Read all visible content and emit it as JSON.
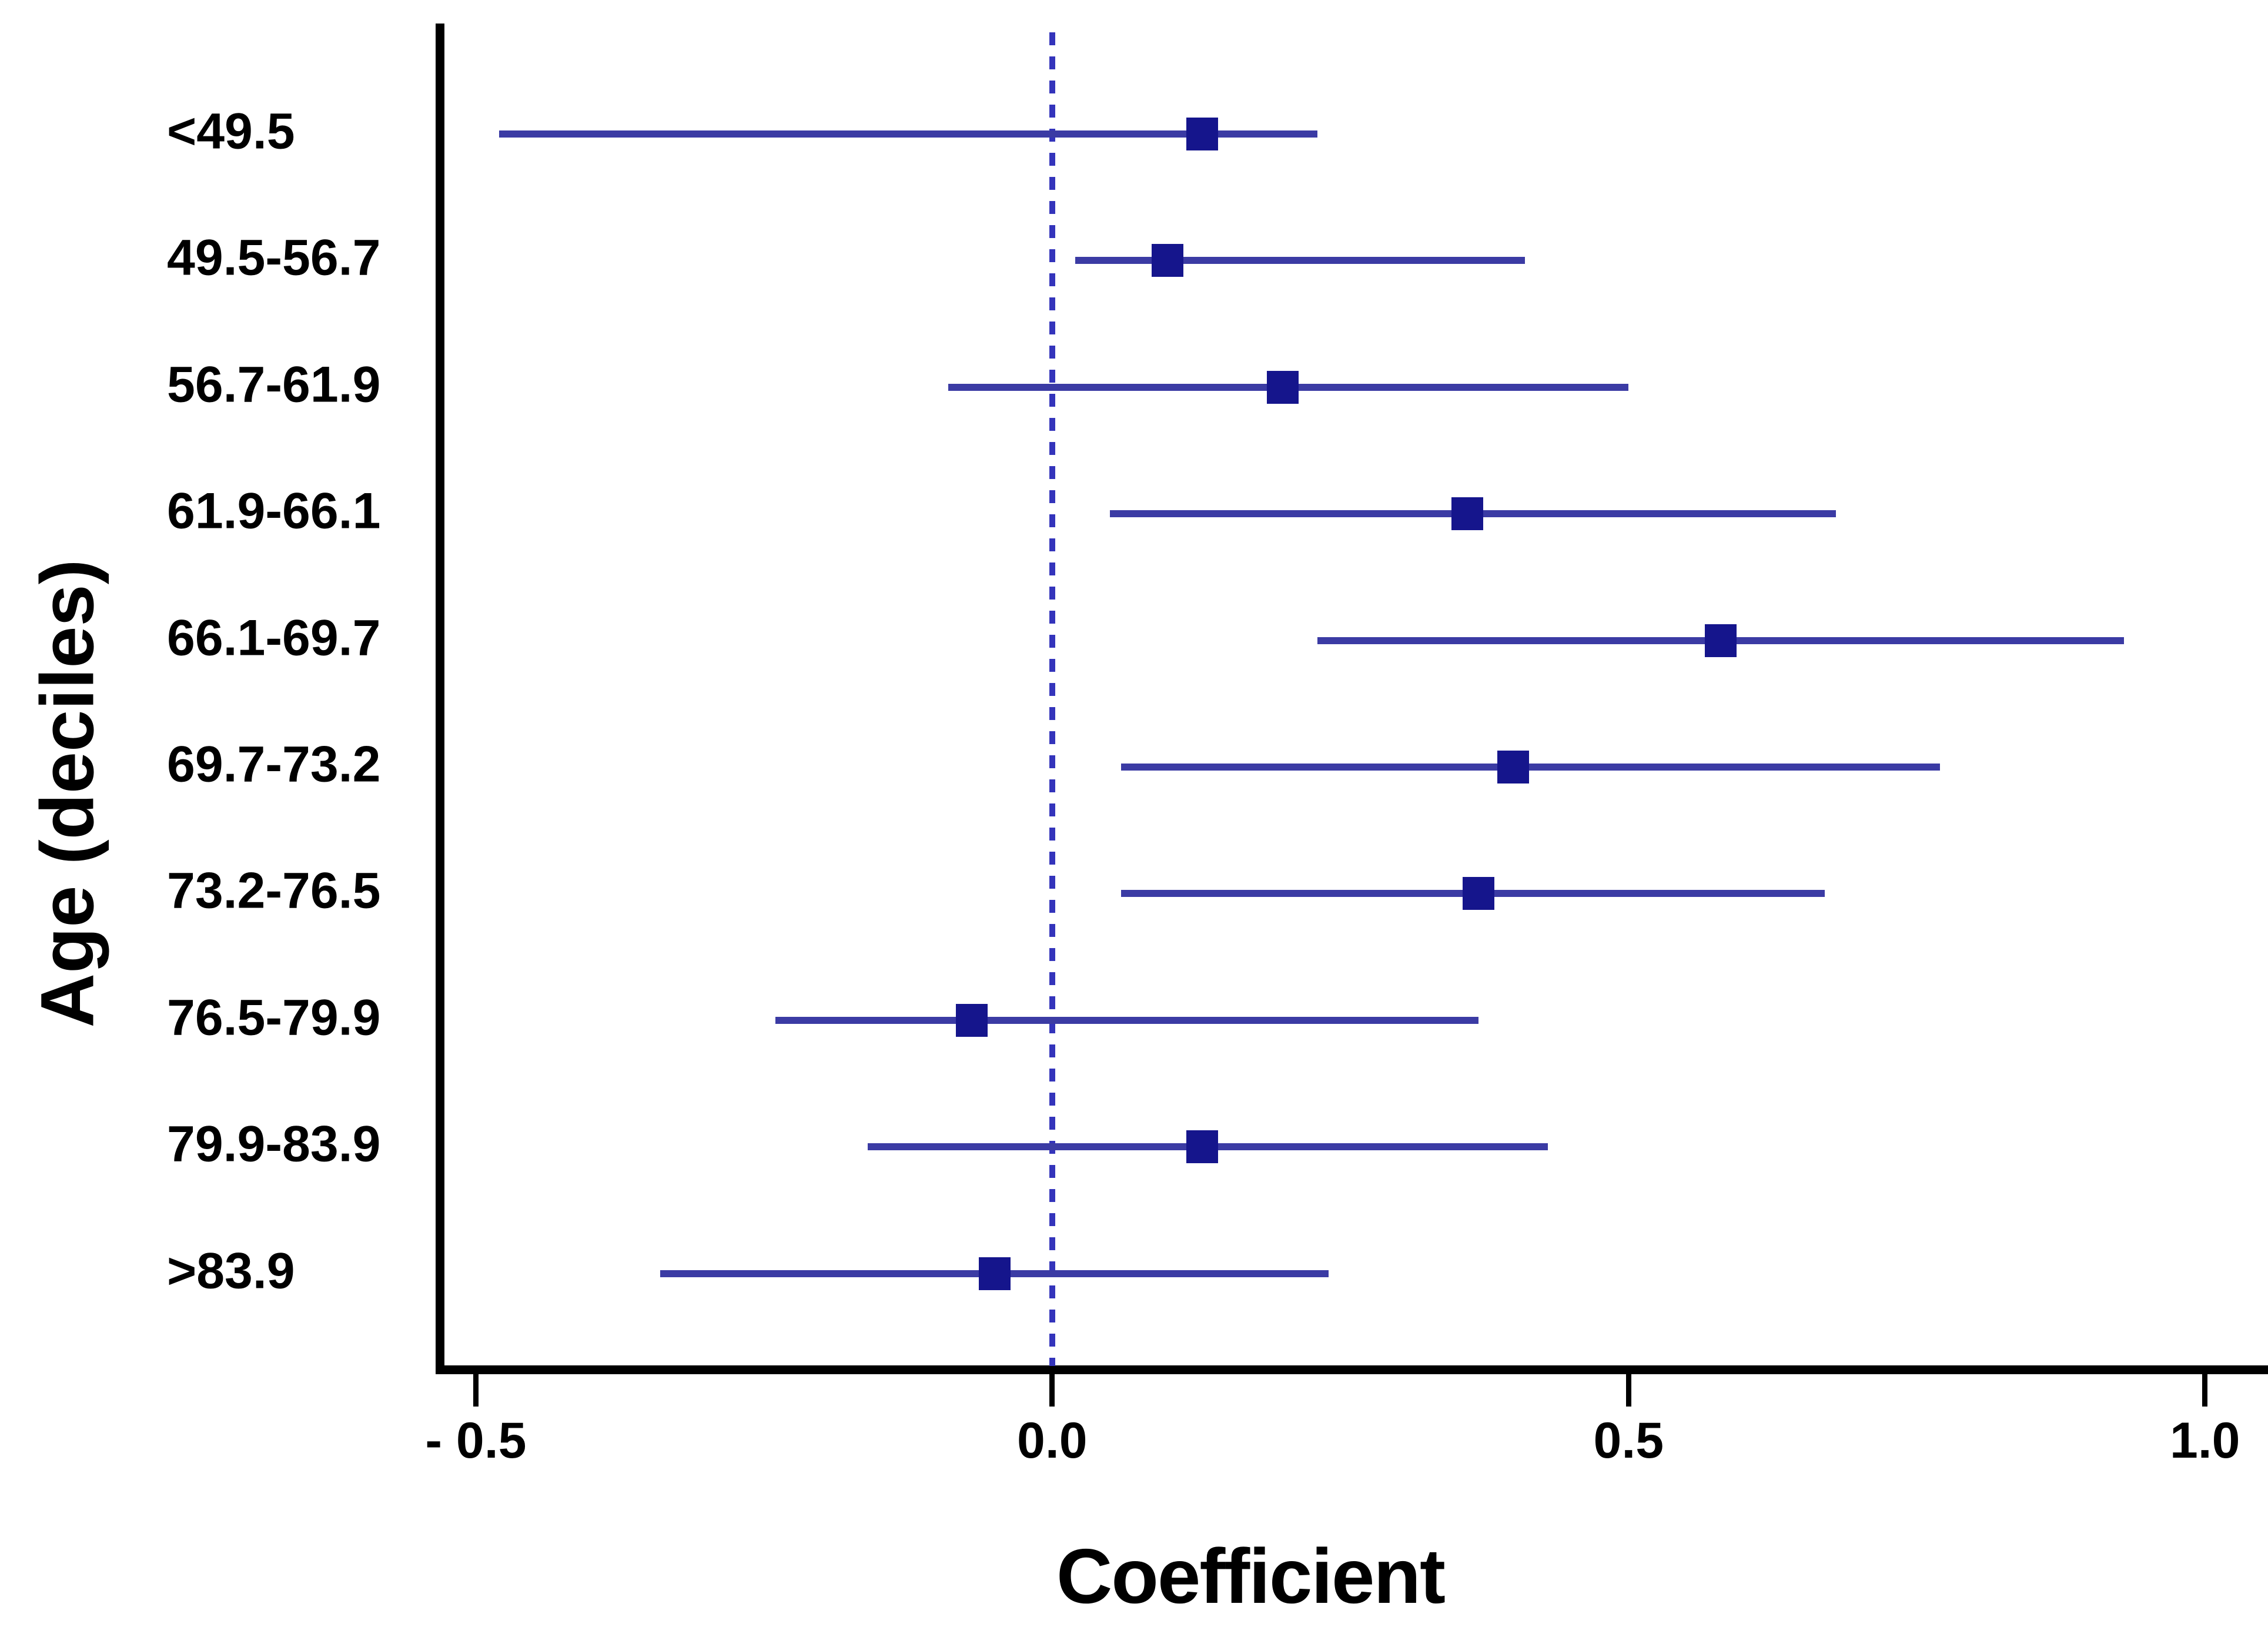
{
  "figure": {
    "background": "#ffffff"
  },
  "chart_data": {
    "type": "scatter",
    "variant": "forest-plot",
    "title": "",
    "xlabel": "Coefficient",
    "ylabel": "Age (deciles)",
    "xlim": [
      -0.5313,
      1.0547
    ],
    "grid": false,
    "legend": "none",
    "zero_reference_line": 0.0,
    "marker_shape": "square",
    "xticks": [
      {
        "value": -0.5,
        "label": "- 0.5"
      },
      {
        "value": 0.0,
        "label": "0.0"
      },
      {
        "value": 0.5,
        "label": "0.5"
      },
      {
        "value": 1.0,
        "label": "1.0"
      }
    ],
    "rows": [
      {
        "category": "<49.5",
        "estimate": 0.13,
        "ci_low": -0.48,
        "ci_high": 0.23
      },
      {
        "category": "49.5-56.7",
        "estimate": 0.1,
        "ci_low": 0.02,
        "ci_high": 0.41
      },
      {
        "category": "56.7-61.9",
        "estimate": 0.2,
        "ci_low": -0.09,
        "ci_high": 0.5
      },
      {
        "category": "61.9-66.1",
        "estimate": 0.36,
        "ci_low": 0.05,
        "ci_high": 0.68
      },
      {
        "category": "66.1-69.7",
        "estimate": 0.58,
        "ci_low": 0.23,
        "ci_high": 0.93
      },
      {
        "category": "69.7-73.2",
        "estimate": 0.4,
        "ci_low": 0.06,
        "ci_high": 0.77
      },
      {
        "category": "73.2-76.5",
        "estimate": 0.37,
        "ci_low": 0.06,
        "ci_high": 0.67
      },
      {
        "category": "76.5-79.9",
        "estimate": -0.07,
        "ci_low": -0.24,
        "ci_high": 0.37
      },
      {
        "category": "79.9-83.9",
        "estimate": 0.13,
        "ci_low": -0.16,
        "ci_high": 0.43
      },
      {
        "category": ">83.9",
        "estimate": -0.05,
        "ci_low": -0.34,
        "ci_high": 0.24
      }
    ],
    "colors": {
      "ci_line": "#3b3ba4",
      "marker": "#15158c",
      "zero_line": "#3434bb",
      "axis": "#000000",
      "text": "#000000"
    }
  }
}
